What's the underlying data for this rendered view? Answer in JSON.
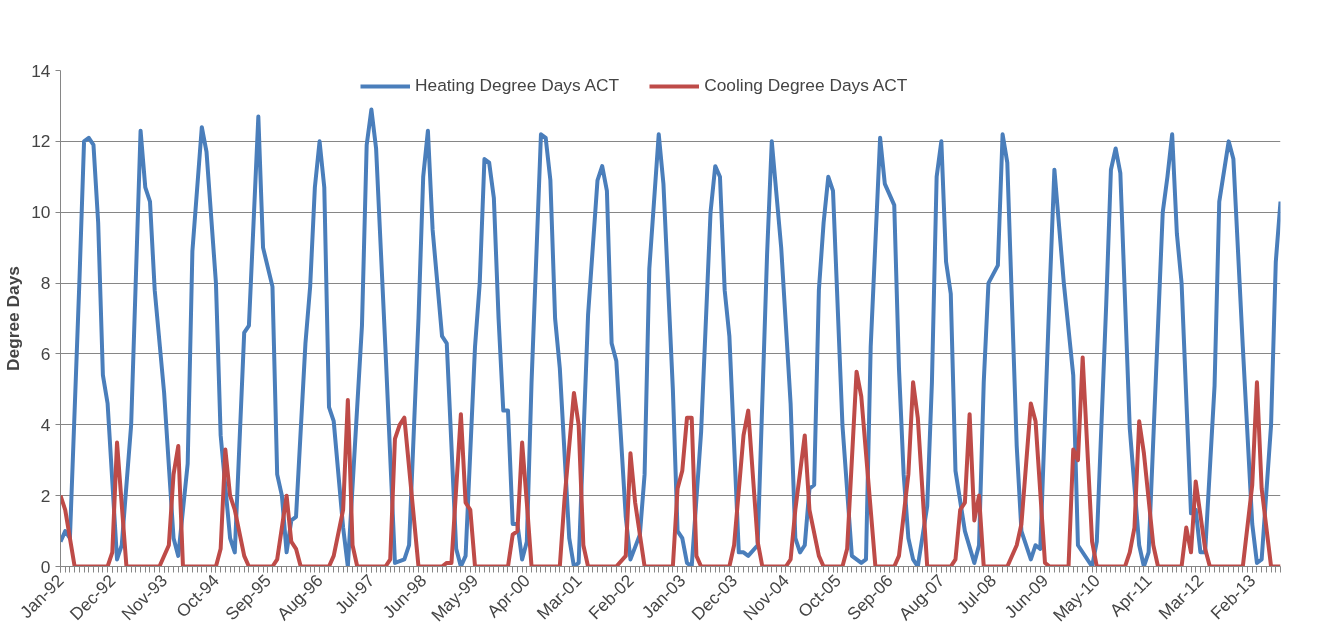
{
  "chart_data": {
    "type": "line",
    "ylabel": "Degree Days",
    "legend": "top",
    "grid": "y",
    "line_style": "solid",
    "marker": "none",
    "ylim": [
      0,
      14
    ],
    "yticks": [
      0,
      2,
      4,
      6,
      8,
      10,
      12,
      14
    ],
    "xlim": [
      "1992-01",
      "2013-08"
    ],
    "xticks": [
      {
        "value": "1992-01",
        "label": "Jan-92"
      },
      {
        "value": "1992-12",
        "label": "Dec-92"
      },
      {
        "value": "1993-11",
        "label": "Nov-93"
      },
      {
        "value": "1994-10",
        "label": "Oct-94"
      },
      {
        "value": "1995-09",
        "label": "Sep-95"
      },
      {
        "value": "1996-08",
        "label": "Aug-96"
      },
      {
        "value": "1997-07",
        "label": "Jul-97"
      },
      {
        "value": "1998-06",
        "label": "Jun-98"
      },
      {
        "value": "1999-05",
        "label": "May-99"
      },
      {
        "value": "2000-04",
        "label": "Apr-00"
      },
      {
        "value": "2001-03",
        "label": "Mar-01"
      },
      {
        "value": "2002-02",
        "label": "Feb-02"
      },
      {
        "value": "2003-01",
        "label": "Jan-03"
      },
      {
        "value": "2003-12",
        "label": "Dec-03"
      },
      {
        "value": "2004-11",
        "label": "Nov-04"
      },
      {
        "value": "2005-10",
        "label": "Oct-05"
      },
      {
        "value": "2006-09",
        "label": "Sep-06"
      },
      {
        "value": "2007-08",
        "label": "Aug-07"
      },
      {
        "value": "2008-07",
        "label": "Jul-08"
      },
      {
        "value": "2009-06",
        "label": "Jun-09"
      },
      {
        "value": "2010-05",
        "label": "May-10"
      },
      {
        "value": "2011-04",
        "label": "Apr-11"
      },
      {
        "value": "2012-03",
        "label": "Mar-12"
      },
      {
        "value": "2013-02",
        "label": "Feb-13"
      }
    ],
    "series": [
      {
        "name": "Heating Degree Days ACT",
        "color": "#4a7ebb",
        "x": [
          "1992-01",
          "1992-02",
          "1992-03",
          "1992-05",
          "1992-06",
          "1992-07",
          "1992-08",
          "1992-09",
          "1992-10",
          "1992-11",
          "1993-01",
          "1993-02",
          "1993-04",
          "1993-06",
          "1993-07",
          "1993-08",
          "1993-09",
          "1993-11",
          "1994-01",
          "1994-02",
          "1994-04",
          "1994-05",
          "1994-07",
          "1994-08",
          "1994-10",
          "1994-11",
          "1995-01",
          "1995-02",
          "1995-04",
          "1995-05",
          "1995-07",
          "1995-08",
          "1995-10",
          "1995-11",
          "1995-12",
          "1996-01",
          "1996-02",
          "1996-03",
          "1996-05",
          "1996-06",
          "1996-07",
          "1996-08",
          "1996-09",
          "1996-10",
          "1996-11",
          "1997-01",
          "1997-02",
          "1997-05",
          "1997-06",
          "1997-07",
          "1997-08",
          "1997-10",
          "1997-12",
          "1998-02",
          "1998-03",
          "1998-05",
          "1998-06",
          "1998-07",
          "1998-08",
          "1998-10",
          "1998-11",
          "1999-01",
          "1999-02",
          "1999-03",
          "1999-05",
          "1999-06",
          "1999-07",
          "1999-08",
          "1999-09",
          "1999-10",
          "1999-11",
          "1999-12",
          "2000-01",
          "2000-02",
          "2000-03",
          "2000-04",
          "2000-05",
          "2000-07",
          "2000-08",
          "2000-09",
          "2000-10",
          "2000-11",
          "2001-01",
          "2001-02",
          "2001-03",
          "2001-05",
          "2001-06",
          "2001-07",
          "2001-08",
          "2001-09",
          "2001-10",
          "2001-11",
          "2002-01",
          "2002-02",
          "2002-04",
          "2002-05",
          "2002-06",
          "2002-08",
          "2002-09",
          "2002-11",
          "2002-12",
          "2003-01",
          "2003-02",
          "2003-03",
          "2003-05",
          "2003-07",
          "2003-08",
          "2003-09",
          "2003-10",
          "2003-11",
          "2004-01",
          "2004-02",
          "2004-03",
          "2004-05",
          "2004-07",
          "2004-08",
          "2004-10",
          "2004-12",
          "2005-01",
          "2005-02",
          "2005-03",
          "2005-04",
          "2005-05",
          "2005-06",
          "2005-07",
          "2005-08",
          "2005-09",
          "2005-11",
          "2006-01",
          "2006-03",
          "2006-04",
          "2006-05",
          "2006-07",
          "2006-08",
          "2006-10",
          "2006-11",
          "2006-12",
          "2007-01",
          "2007-02",
          "2007-03",
          "2007-05",
          "2007-06",
          "2007-07",
          "2007-08",
          "2007-09",
          "2007-10",
          "2007-11",
          "2008-01",
          "2008-03",
          "2008-04",
          "2008-05",
          "2008-06",
          "2008-08",
          "2008-09",
          "2008-10",
          "2008-12",
          "2009-01",
          "2009-03",
          "2009-04",
          "2009-05",
          "2009-07",
          "2009-08",
          "2009-10",
          "2009-12",
          "2010-01",
          "2010-04",
          "2010-05",
          "2010-07",
          "2010-08",
          "2010-09",
          "2010-10",
          "2010-12",
          "2011-02",
          "2011-03",
          "2011-04",
          "2011-07",
          "2011-08",
          "2011-09",
          "2011-10",
          "2011-11",
          "2012-01",
          "2012-02",
          "2012-03",
          "2012-04",
          "2012-06",
          "2012-07",
          "2012-09",
          "2012-10",
          "2012-12",
          "2013-02",
          "2013-03",
          "2013-04",
          "2013-06",
          "2013-07",
          "2013-08"
        ],
        "values": [
          0.7,
          1.0,
          0.8,
          8.0,
          12.0,
          12.1,
          11.9,
          9.7,
          5.4,
          4.6,
          0.2,
          0.6,
          4.0,
          12.3,
          10.7,
          10.3,
          7.8,
          4.9,
          0.8,
          0.3,
          2.9,
          8.9,
          12.4,
          11.7,
          8.0,
          3.7,
          0.8,
          0.4,
          6.6,
          6.8,
          12.7,
          9.0,
          7.9,
          2.6,
          2.0,
          0.4,
          1.3,
          1.4,
          6.3,
          7.9,
          10.7,
          12.0,
          10.7,
          4.5,
          4.1,
          1.1,
          0.0,
          6.8,
          11.9,
          12.9,
          11.8,
          6.1,
          0.1,
          0.2,
          0.6,
          7.0,
          11.0,
          12.3,
          9.5,
          6.5,
          6.3,
          0.5,
          0.0,
          0.3,
          6.2,
          8.0,
          11.5,
          11.4,
          10.4,
          7.0,
          4.4,
          4.4,
          1.2,
          1.2,
          0.2,
          0.7,
          5.2,
          12.2,
          12.1,
          10.9,
          7.0,
          5.6,
          0.8,
          0.0,
          0.1,
          7.1,
          9.0,
          10.9,
          11.3,
          10.6,
          6.3,
          5.8,
          1.4,
          0.2,
          0.9,
          2.6,
          8.4,
          12.2,
          10.8,
          5.0,
          1.0,
          0.8,
          0.1,
          0.0,
          3.8,
          10.0,
          11.3,
          11.0,
          7.8,
          6.5,
          0.4,
          0.4,
          0.3,
          0.6,
          8.8,
          12.0,
          9.0,
          4.6,
          0.8,
          0.4,
          0.6,
          2.2,
          2.3,
          7.8,
          9.7,
          11.0,
          10.6,
          4.0,
          0.3,
          0.1,
          0.2,
          6.2,
          12.1,
          10.8,
          10.2,
          5.6,
          2.6,
          0.8,
          0.2,
          0.0,
          1.7,
          5.2,
          11.0,
          12.0,
          8.6,
          7.7,
          2.7,
          1.0,
          0.1,
          0.6,
          5.2,
          8.0,
          8.5,
          12.2,
          11.4,
          3.4,
          1.0,
          0.2,
          0.6,
          0.5,
          7.8,
          11.2,
          8.0,
          5.4,
          0.6,
          0.0,
          0.7,
          7.4,
          11.2,
          11.8,
          11.1,
          3.9,
          0.6,
          0.0,
          0.4,
          10.0,
          11.0,
          12.2,
          9.4,
          8.0,
          1.5,
          1.6,
          0.4,
          0.4,
          5.1,
          10.3,
          12.0,
          11.5,
          6.2,
          1.2,
          0.1,
          0.2,
          4.0,
          8.6,
          10.3
        ]
      },
      {
        "name": "Cooling Degree Days ACT",
        "color": "#be4b48",
        "x": [
          "1992-01",
          "1992-02",
          "1992-04",
          "1992-11",
          "1992-12",
          "1993-01",
          "1993-03",
          "1993-10",
          "1993-12",
          "1994-01",
          "1994-02",
          "1994-03",
          "1994-10",
          "1994-11",
          "1994-12",
          "1995-01",
          "1995-02",
          "1995-04",
          "1995-05",
          "1995-10",
          "1995-11",
          "1996-01",
          "1996-02",
          "1996-03",
          "1996-04",
          "1996-10",
          "1996-11",
          "1997-01",
          "1997-02",
          "1997-03",
          "1997-04",
          "1997-10",
          "1997-11",
          "1997-12",
          "1998-01",
          "1998-02",
          "1998-05",
          "1998-10",
          "1998-11",
          "1998-12",
          "1999-02",
          "1999-03",
          "1999-04",
          "1999-05",
          "1999-12",
          "2000-01",
          "2000-02",
          "2000-03",
          "2000-04",
          "2000-05",
          "2000-11",
          "2000-12",
          "2001-02",
          "2001-03",
          "2001-04",
          "2001-05",
          "2001-11",
          "2002-01",
          "2002-02",
          "2002-03",
          "2002-05",
          "2002-11",
          "2002-12",
          "2003-01",
          "2003-02",
          "2003-03",
          "2003-04",
          "2003-05",
          "2003-11",
          "2003-12",
          "2004-02",
          "2004-03",
          "2004-05",
          "2004-06",
          "2004-11",
          "2004-12",
          "2005-01",
          "2005-03",
          "2005-04",
          "2005-06",
          "2005-07",
          "2005-11",
          "2005-12",
          "2006-02",
          "2006-03",
          "2006-06",
          "2006-10",
          "2006-11",
          "2007-01",
          "2007-02",
          "2007-03",
          "2007-05",
          "2007-10",
          "2007-11",
          "2007-12",
          "2008-01",
          "2008-02",
          "2008-03",
          "2008-04",
          "2008-05",
          "2008-10",
          "2008-12",
          "2009-01",
          "2009-03",
          "2009-04",
          "2009-06",
          "2009-07",
          "2009-11",
          "2009-12",
          "2010-01",
          "2010-02",
          "2010-04",
          "2010-05",
          "2010-11",
          "2010-12",
          "2011-01",
          "2011-02",
          "2011-03",
          "2011-05",
          "2011-06",
          "2011-11",
          "2011-12",
          "2012-01",
          "2012-02",
          "2012-04",
          "2012-05",
          "2012-12",
          "2013-02",
          "2013-03",
          "2013-04",
          "2013-06",
          "2013-08"
        ],
        "values": [
          2.0,
          1.6,
          0,
          0,
          0.4,
          3.5,
          0,
          0,
          0.6,
          2.6,
          3.4,
          0,
          0,
          0.5,
          3.3,
          2.0,
          1.6,
          0.3,
          0,
          0,
          0.2,
          2.0,
          0.7,
          0.5,
          0,
          0,
          0.3,
          1.6,
          4.7,
          0.6,
          0,
          0,
          0.2,
          3.6,
          4.0,
          4.2,
          0,
          0,
          0.1,
          0.1,
          4.3,
          1.8,
          1.6,
          0,
          0,
          0.9,
          1.0,
          3.5,
          1.8,
          0,
          0,
          1.9,
          4.9,
          4.0,
          0.6,
          0,
          0,
          0.3,
          3.2,
          1.8,
          0,
          0,
          2.2,
          2.7,
          4.2,
          4.2,
          0.3,
          0,
          0,
          0.6,
          3.7,
          4.4,
          0.7,
          0,
          0,
          0.2,
          1.6,
          3.7,
          1.6,
          0.3,
          0,
          0,
          0.5,
          5.5,
          4.8,
          0,
          0,
          0.3,
          2.6,
          5.2,
          4.2,
          0,
          0,
          0.2,
          1.6,
          1.8,
          4.3,
          1.3,
          2.0,
          0,
          0,
          0.6,
          1.2,
          4.6,
          4.1,
          0.1,
          0,
          0,
          3.3,
          3.0,
          5.9,
          0.7,
          0,
          0,
          0.4,
          1.1,
          4.1,
          3.2,
          0.6,
          0,
          0,
          1.1,
          0.4,
          2.4,
          0.5,
          0,
          0,
          2.3,
          5.2,
          2.2,
          0,
          0
        ]
      }
    ]
  }
}
